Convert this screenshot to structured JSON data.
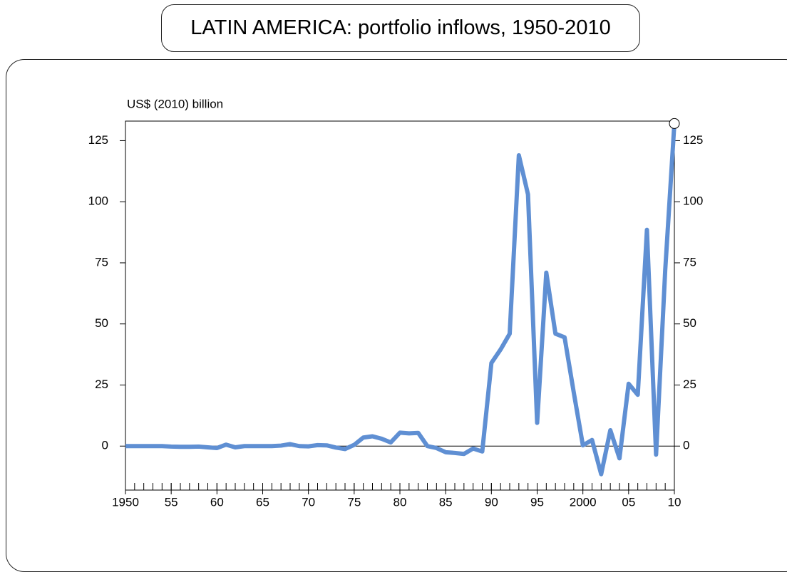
{
  "chart_data": {
    "type": "line",
    "title": "LATIN AMERICA: portfolio inflows, 1950-2010",
    "y_label": "US$ (2010) billion",
    "x": [
      1950,
      1951,
      1952,
      1953,
      1954,
      1955,
      1956,
      1957,
      1958,
      1959,
      1960,
      1961,
      1962,
      1963,
      1964,
      1965,
      1966,
      1967,
      1968,
      1969,
      1970,
      1971,
      1972,
      1973,
      1974,
      1975,
      1976,
      1977,
      1978,
      1979,
      1980,
      1981,
      1982,
      1983,
      1984,
      1985,
      1986,
      1987,
      1988,
      1989,
      1990,
      1991,
      1992,
      1993,
      1994,
      1995,
      1996,
      1997,
      1998,
      1999,
      2000,
      2001,
      2002,
      2003,
      2004,
      2005,
      2006,
      2007,
      2008,
      2009,
      2010
    ],
    "series": [
      {
        "name": "Portfolio inflows",
        "color": "#5f8fd3",
        "values": [
          0,
          0,
          0,
          0,
          0,
          -0.2,
          -0.3,
          -0.3,
          -0.2,
          -0.5,
          -0.8,
          0.6,
          -0.5,
          0,
          0,
          0,
          0,
          0.2,
          0.8,
          0,
          -0.1,
          0.4,
          0.3,
          -0.6,
          -1.2,
          0.5,
          3.5,
          4,
          3,
          1.5,
          5.5,
          5.2,
          5.4,
          0,
          -0.8,
          -2.5,
          -2.8,
          -3.2,
          -1,
          -2.2,
          34,
          39.5,
          46,
          119,
          103,
          9.5,
          71,
          46,
          44.5,
          22,
          0.3,
          2.5,
          -11.5,
          6.5,
          -5,
          25.5,
          21,
          88.5,
          -3.5,
          72,
          132
        ]
      }
    ],
    "xlim": [
      1950,
      2010
    ],
    "xticks": [
      {
        "value": 1950,
        "label": "1950"
      },
      {
        "value": 1955,
        "label": "55"
      },
      {
        "value": 1960,
        "label": "60"
      },
      {
        "value": 1965,
        "label": "65"
      },
      {
        "value": 1970,
        "label": "70"
      },
      {
        "value": 1975,
        "label": "75"
      },
      {
        "value": 1980,
        "label": "80"
      },
      {
        "value": 1985,
        "label": "85"
      },
      {
        "value": 1990,
        "label": "90"
      },
      {
        "value": 1995,
        "label": "95"
      },
      {
        "value": 2000,
        "label": "2000"
      },
      {
        "value": 2005,
        "label": "05"
      },
      {
        "value": 2010,
        "label": "10"
      }
    ],
    "ylim": [
      -18,
      133
    ],
    "yticks": [
      0,
      25,
      50,
      75,
      100,
      125
    ],
    "mirror_y_axis": true,
    "end_marker": true
  }
}
